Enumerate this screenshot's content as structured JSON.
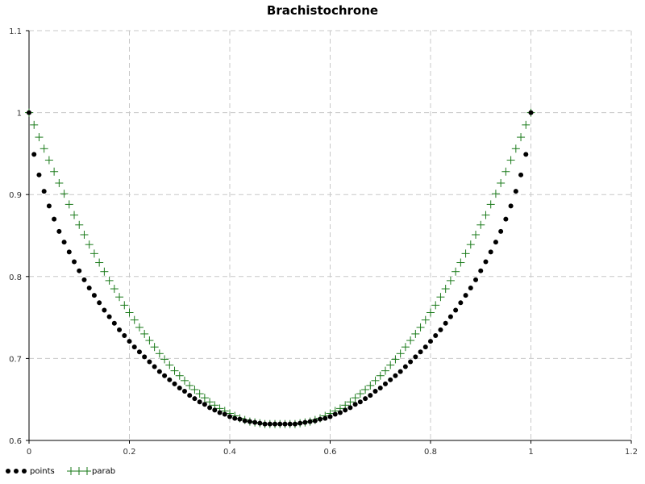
{
  "chart_data": {
    "type": "scatter",
    "title": "Brachistochrone",
    "xlabel": "",
    "ylabel": "",
    "xlim": [
      0,
      1.2
    ],
    "ylim": [
      0.6,
      1.1
    ],
    "xticks": [
      "0",
      "0.2",
      "0.4",
      "0.6",
      "0.8",
      "1",
      "1.2"
    ],
    "yticks": [
      "0.6",
      "0.7",
      "0.8",
      "0.9",
      "1",
      "1.1"
    ],
    "grid": true,
    "legend": "bottom-left",
    "series": [
      {
        "name": "points",
        "marker": "dot",
        "color": "#000000",
        "x": [
          0.0,
          0.01,
          0.02,
          0.03,
          0.04,
          0.05,
          0.06,
          0.07,
          0.08,
          0.09,
          0.1,
          0.11,
          0.12,
          0.13,
          0.14,
          0.15,
          0.16,
          0.17,
          0.18,
          0.19,
          0.2,
          0.21,
          0.22,
          0.23,
          0.24,
          0.25,
          0.26,
          0.27,
          0.28,
          0.29,
          0.3,
          0.31,
          0.32,
          0.33,
          0.34,
          0.35,
          0.36,
          0.37,
          0.38,
          0.39,
          0.4,
          0.41,
          0.42,
          0.43,
          0.44,
          0.45,
          0.46,
          0.47,
          0.48,
          0.49,
          0.5,
          0.51,
          0.52,
          0.53,
          0.54,
          0.55,
          0.56,
          0.57,
          0.58,
          0.59,
          0.6,
          0.61,
          0.62,
          0.63,
          0.64,
          0.65,
          0.66,
          0.67,
          0.68,
          0.69,
          0.7,
          0.71,
          0.72,
          0.73,
          0.74,
          0.75,
          0.76,
          0.77,
          0.78,
          0.79,
          0.8,
          0.81,
          0.82,
          0.83,
          0.84,
          0.85,
          0.86,
          0.87,
          0.88,
          0.89,
          0.9,
          0.91,
          0.92,
          0.93,
          0.94,
          0.95,
          0.96,
          0.97,
          0.98,
          0.99,
          1.0
        ],
        "y": [
          1.0,
          0.949,
          0.924,
          0.904,
          0.886,
          0.87,
          0.855,
          0.842,
          0.83,
          0.818,
          0.807,
          0.796,
          0.786,
          0.777,
          0.768,
          0.759,
          0.751,
          0.743,
          0.735,
          0.728,
          0.721,
          0.714,
          0.708,
          0.702,
          0.696,
          0.69,
          0.684,
          0.679,
          0.674,
          0.669,
          0.664,
          0.66,
          0.655,
          0.651,
          0.647,
          0.644,
          0.64,
          0.637,
          0.634,
          0.632,
          0.629,
          0.627,
          0.626,
          0.624,
          0.623,
          0.622,
          0.621,
          0.62,
          0.62,
          0.62,
          0.62,
          0.62,
          0.62,
          0.62,
          0.621,
          0.622,
          0.623,
          0.624,
          0.626,
          0.627,
          0.629,
          0.632,
          0.634,
          0.637,
          0.64,
          0.644,
          0.647,
          0.651,
          0.655,
          0.66,
          0.664,
          0.669,
          0.674,
          0.679,
          0.684,
          0.69,
          0.696,
          0.702,
          0.708,
          0.714,
          0.721,
          0.728,
          0.735,
          0.743,
          0.751,
          0.759,
          0.768,
          0.777,
          0.786,
          0.796,
          0.807,
          0.818,
          0.83,
          0.842,
          0.855,
          0.87,
          0.886,
          0.904,
          0.924,
          0.949,
          1.0
        ]
      },
      {
        "name": "parab",
        "marker": "plus",
        "color": "#1a7a1a",
        "x": [
          0.0,
          0.01,
          0.02,
          0.03,
          0.04,
          0.05,
          0.06,
          0.07,
          0.08,
          0.09,
          0.1,
          0.11,
          0.12,
          0.13,
          0.14,
          0.15,
          0.16,
          0.17,
          0.18,
          0.19,
          0.2,
          0.21,
          0.22,
          0.23,
          0.24,
          0.25,
          0.26,
          0.27,
          0.28,
          0.29,
          0.3,
          0.31,
          0.32,
          0.33,
          0.34,
          0.35,
          0.36,
          0.37,
          0.38,
          0.39,
          0.4,
          0.41,
          0.42,
          0.43,
          0.44,
          0.45,
          0.46,
          0.47,
          0.48,
          0.49,
          0.5,
          0.51,
          0.52,
          0.53,
          0.54,
          0.55,
          0.56,
          0.57,
          0.58,
          0.59,
          0.6,
          0.61,
          0.62,
          0.63,
          0.64,
          0.65,
          0.66,
          0.67,
          0.68,
          0.69,
          0.7,
          0.71,
          0.72,
          0.73,
          0.74,
          0.75,
          0.76,
          0.77,
          0.78,
          0.79,
          0.8,
          0.81,
          0.82,
          0.83,
          0.84,
          0.85,
          0.86,
          0.87,
          0.88,
          0.89,
          0.9,
          0.91,
          0.92,
          0.93,
          0.94,
          0.95,
          0.96,
          0.97,
          0.98,
          0.99,
          1.0
        ],
        "y": [
          1.0,
          0.985,
          0.97,
          0.956,
          0.942,
          0.928,
          0.914,
          0.901,
          0.888,
          0.875,
          0.863,
          0.851,
          0.839,
          0.828,
          0.817,
          0.806,
          0.795,
          0.785,
          0.775,
          0.765,
          0.756,
          0.747,
          0.738,
          0.73,
          0.722,
          0.714,
          0.706,
          0.699,
          0.692,
          0.685,
          0.679,
          0.673,
          0.667,
          0.662,
          0.657,
          0.652,
          0.647,
          0.643,
          0.639,
          0.636,
          0.633,
          0.63,
          0.627,
          0.625,
          0.623,
          0.622,
          0.621,
          0.62,
          0.62,
          0.62,
          0.62,
          0.62,
          0.62,
          0.62,
          0.621,
          0.622,
          0.623,
          0.625,
          0.627,
          0.63,
          0.633,
          0.636,
          0.639,
          0.643,
          0.647,
          0.652,
          0.657,
          0.662,
          0.667,
          0.673,
          0.679,
          0.685,
          0.692,
          0.699,
          0.706,
          0.714,
          0.722,
          0.73,
          0.738,
          0.747,
          0.756,
          0.765,
          0.775,
          0.785,
          0.795,
          0.806,
          0.817,
          0.828,
          0.839,
          0.851,
          0.863,
          0.875,
          0.888,
          0.901,
          0.914,
          0.928,
          0.942,
          0.956,
          0.97,
          0.985,
          1.0
        ]
      }
    ]
  }
}
